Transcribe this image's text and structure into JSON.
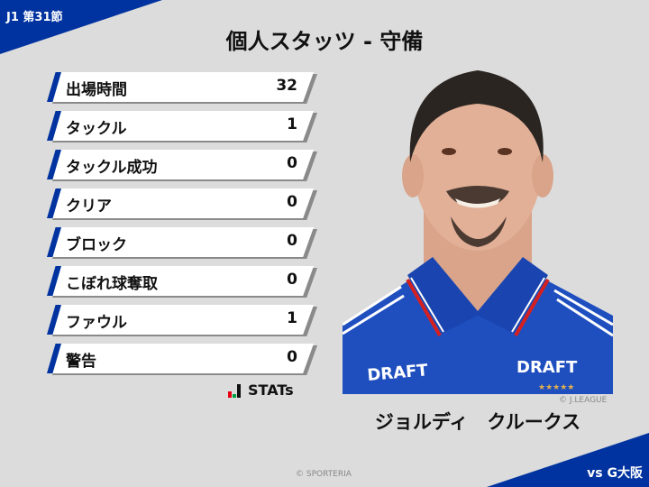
{
  "header": {
    "round": "J1 第31節",
    "title": "個人スタッツ - 守備"
  },
  "stats": [
    {
      "label": "出場時間",
      "value": "32"
    },
    {
      "label": "タックル",
      "value": "1"
    },
    {
      "label": "タックル成功",
      "value": "0"
    },
    {
      "label": "クリア",
      "value": "0"
    },
    {
      "label": "ブロック",
      "value": "0"
    },
    {
      "label": "こぼれ球奪取",
      "value": "0"
    },
    {
      "label": "ファウル",
      "value": "1"
    },
    {
      "label": "警告",
      "value": "0"
    }
  ],
  "logo": {
    "text": "STATs",
    "colors": [
      "#e60012",
      "#00a040",
      "#111111"
    ]
  },
  "player": {
    "name": "ジョルディ　クルークス",
    "photo_credit": "© J.LEAGUE",
    "shirt_sponsor": "DRAFT"
  },
  "footer": {
    "opponent": "vs G大阪",
    "credit": "© SPORTERIA"
  },
  "colors": {
    "accent": "#0033a0",
    "background": "#dcdcdc"
  }
}
